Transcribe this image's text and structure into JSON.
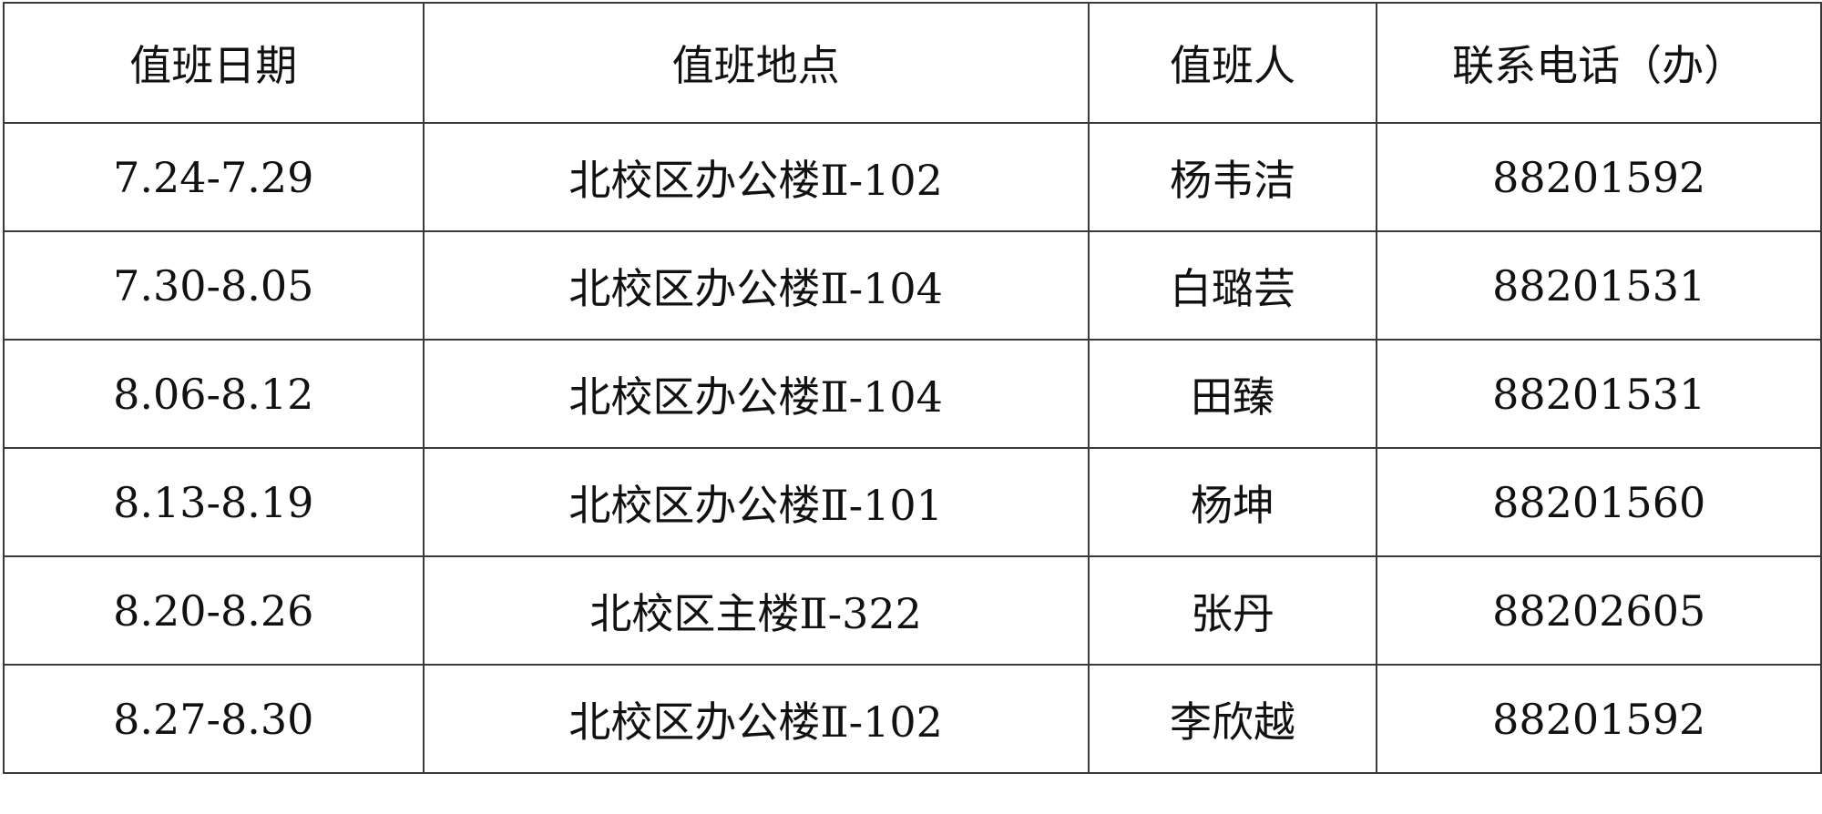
{
  "table": {
    "headers": [
      "值班日期",
      "值班地点",
      "值班人",
      "联系电话（办）"
    ],
    "rows": [
      [
        "7.24-7.29",
        "北校区办公楼Ⅱ-102",
        "杨韦洁",
        "88201592"
      ],
      [
        "7.30-8.05",
        "北校区办公楼Ⅱ-104",
        "白璐芸",
        "88201531"
      ],
      [
        "8.06-8.12",
        "北校区办公楼Ⅱ-104",
        "田臻",
        "88201531"
      ],
      [
        "8.13-8.19",
        "北校区办公楼Ⅱ-101",
        "杨坤",
        "88201560"
      ],
      [
        "8.20-8.26",
        "北校区主楼Ⅱ-322",
        "张丹",
        "88202605"
      ],
      [
        "8.27-8.30",
        "北校区办公楼Ⅱ-102",
        "李欣越",
        "88201592"
      ]
    ]
  }
}
